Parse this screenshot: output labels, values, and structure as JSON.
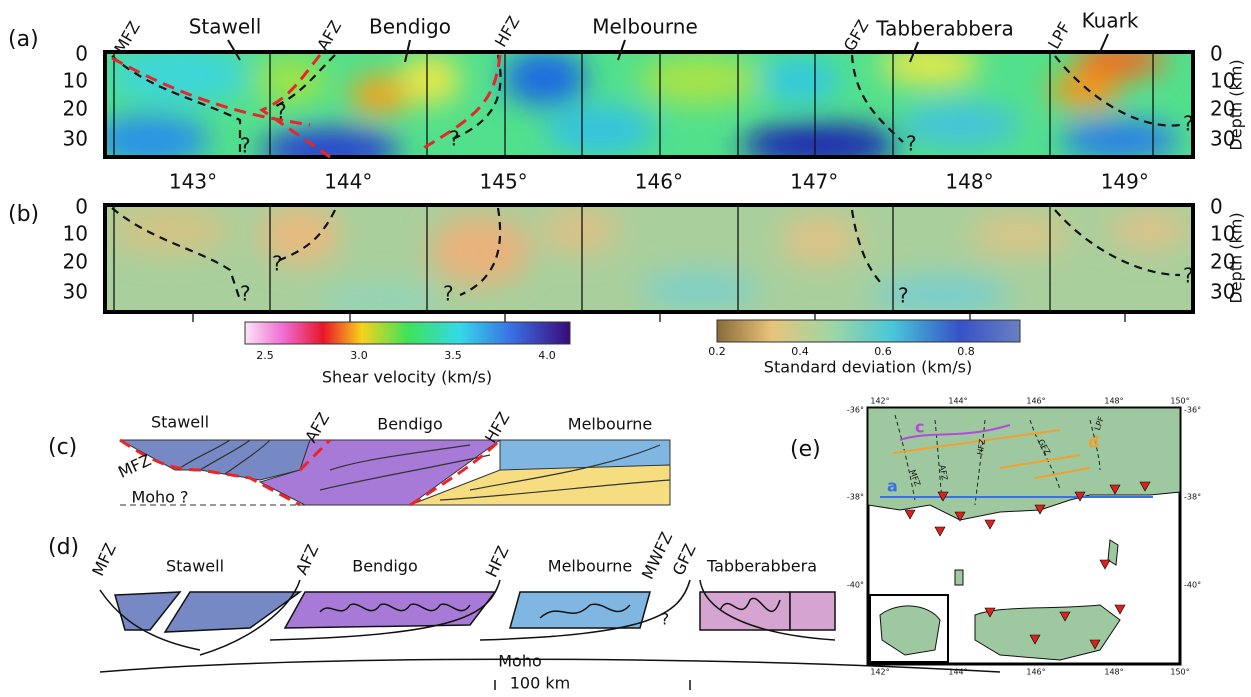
{
  "panel_a": {
    "label": "(a)",
    "faults": [
      "MFZ",
      "AFZ",
      "HFZ",
      "GFZ",
      "LPF"
    ],
    "terranes": [
      "Stawell",
      "Bendigo",
      "Melbourne",
      "Tabberabbera",
      "Kuark"
    ],
    "depth_ticks": [
      "0",
      "10",
      "20",
      "30"
    ],
    "depth_label": "Depth (km)",
    "queries": [
      "?",
      "?",
      "?",
      "?",
      "?"
    ],
    "lon_ticks": [
      "143°",
      "144°",
      "145°",
      "146°",
      "147°",
      "148°",
      "149°"
    ]
  },
  "panel_b": {
    "label": "(b)",
    "depth_ticks": [
      "0",
      "10",
      "20",
      "30"
    ],
    "depth_label": "Depth (km)",
    "queries": [
      "?",
      "?",
      "?",
      "?",
      "?"
    ]
  },
  "colorbars": [
    {
      "ticks": [
        "2.5",
        "3.0",
        "3.5",
        "4.0"
      ],
      "label": "Shear velocity (km/s)"
    },
    {
      "ticks": [
        "0.2",
        "0.4",
        "0.6",
        "0.8"
      ],
      "label": "Standard deviation (km/s)"
    }
  ],
  "panel_c": {
    "label": "(c)",
    "texts": [
      "Stawell",
      "AFZ",
      "Bendigo",
      "HFZ",
      "Melbourne",
      "MFZ",
      "Moho ?"
    ]
  },
  "panel_d": {
    "label": "(d)",
    "texts": [
      "MFZ",
      "Stawell",
      "AFZ",
      "Bendigo",
      "HFZ",
      "Melbourne",
      "MWFZ",
      "GFZ",
      "Tabberabbera",
      "Moho",
      "?"
    ],
    "scale": "100 km"
  },
  "panel_e": {
    "label": "(e)",
    "lon_ticks": [
      "142°",
      "144°",
      "146°",
      "148°",
      "150°"
    ],
    "lat_ticks": [
      "-36°",
      "-38°",
      "-40°"
    ],
    "profiles": [
      "a",
      "c",
      "d"
    ],
    "faults": [
      "MFZ",
      "AFZ",
      "HFZ",
      "GFZ",
      "LPF"
    ]
  }
}
